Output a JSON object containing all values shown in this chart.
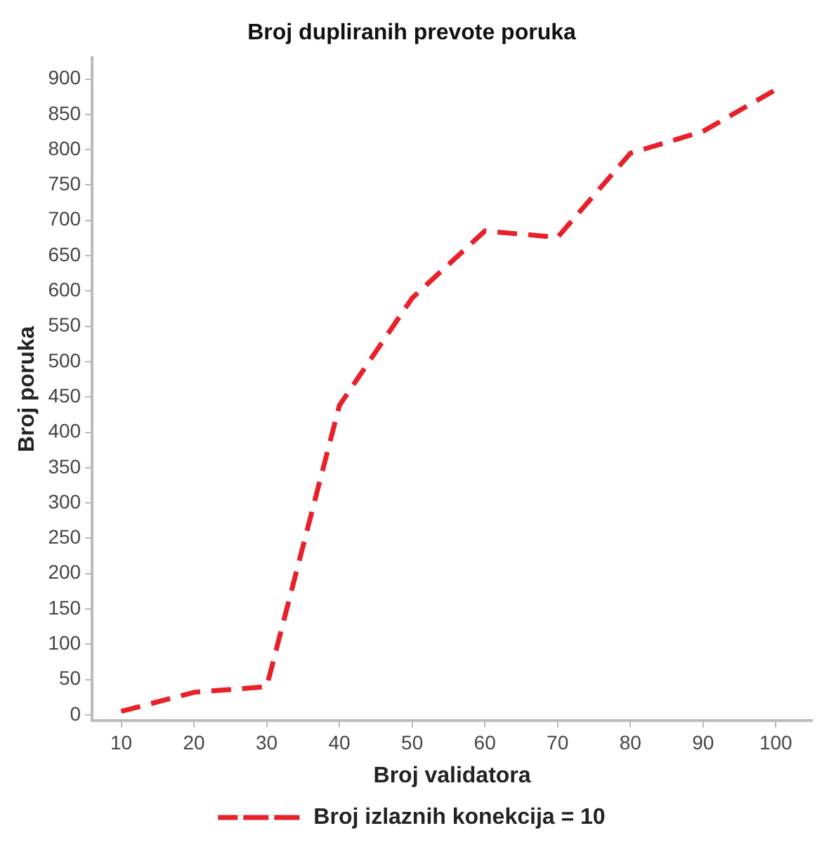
{
  "chart_data": {
    "type": "line",
    "title": "Broj dupliranih prevote poruka",
    "xlabel": "Broj validatora",
    "ylabel": "Broj poruka",
    "x": [
      10,
      20,
      30,
      40,
      50,
      60,
      70,
      80,
      90,
      100
    ],
    "series": [
      {
        "name": "Broj izlaznih konekcija = 10",
        "color": "#e8202a",
        "values": [
          5,
          32,
          40,
          438,
          590,
          685,
          676,
          795,
          826,
          885
        ]
      }
    ],
    "xlim": [
      6,
      105
    ],
    "xticks": [
      10,
      20,
      30,
      40,
      50,
      60,
      70,
      80,
      90,
      100
    ],
    "ylim": [
      -8,
      930
    ],
    "yticks": [
      0,
      50,
      100,
      150,
      200,
      250,
      300,
      350,
      400,
      450,
      500,
      550,
      600,
      650,
      700,
      750,
      800,
      850,
      900
    ],
    "grid": false,
    "legend": "bottom",
    "marker": "none",
    "line_style": "dashed"
  }
}
